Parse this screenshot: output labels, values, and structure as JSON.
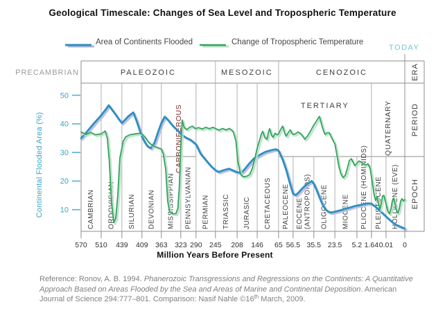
{
  "title": "Geological Timescale: Changes of Sea Level and Tropospheric Temperature",
  "legend": {
    "series1": "Area of Continents Flooded",
    "series2": "Change of Tropospheric Temperature"
  },
  "today_label": "TODAY",
  "colors": {
    "blue_line": "#2e8fbf",
    "blue_shadow": "#aeb6e2",
    "green_line": "#35a260",
    "green_shadow": "#b9e0c6",
    "axis_teal": "#3aa3c4",
    "tick_teal": "#4ab5d5",
    "today": "#6fc6e2",
    "frame": "#8c8c8c",
    "grid": "#b0b0b0",
    "text_dark": "#3d3d3d",
    "text_gray": "#9a9a9a",
    "carboniferous": "#7d2b28",
    "footer_gray": "#7f7f7f"
  },
  "footer": {
    "segments": [
      {
        "text": "Reference: Ronov, A. B. 1994. ",
        "style": "normal"
      },
      {
        "text": "Phanerozoic Transgressions and Regressions on the Continents: A Quantitative Approach Based on Areas Flooded by the Sea and Areas of Marine and Continental Deposition",
        "style": "italic"
      },
      {
        "text": ". American Journal of Science 294:777–801. Comparison: Nasif Nahle ©16",
        "style": "normal"
      },
      {
        "text": "th",
        "style": "sup"
      },
      {
        "text": " March, 2009.",
        "style": "normal"
      }
    ]
  },
  "chart_data": {
    "type": "line",
    "title": "Geological Timescale: Changes of Sea Level and Tropospheric Temperature",
    "xlabel": "Million Years Before Present",
    "ylabel": "Continental Flooded Area (%)",
    "ylim": [
      0,
      55
    ],
    "y_ticks": [
      10,
      20,
      30,
      40,
      50
    ],
    "x_ticks": [
      {
        "ma": 570,
        "label": "570",
        "pos": 0.0
      },
      {
        "ma": 510,
        "label": "510",
        "pos": 0.062
      },
      {
        "ma": 439,
        "label": "439",
        "pos": 0.126
      },
      {
        "ma": 409,
        "label": "409",
        "pos": 0.188
      },
      {
        "ma": 363,
        "label": "363",
        "pos": 0.248
      },
      {
        "ma": 323,
        "label": "323",
        "pos": 0.308
      },
      {
        "ma": 290,
        "label": "290",
        "pos": 0.355
      },
      {
        "ma": 245,
        "label": "245",
        "pos": 0.415
      },
      {
        "ma": 208,
        "label": "208",
        "pos": 0.482
      },
      {
        "ma": 146,
        "label": "146",
        "pos": 0.544
      },
      {
        "ma": 65,
        "label": "65",
        "pos": 0.61
      },
      {
        "ma": 56.5,
        "label": "56.5",
        "pos": 0.655
      },
      {
        "ma": 35.5,
        "label": "35.5",
        "pos": 0.719
      },
      {
        "ma": 23.5,
        "label": "23.5",
        "pos": 0.784
      },
      {
        "ma": 5.2,
        "label": "5.2",
        "pos": 0.852
      },
      {
        "ma": 1.64,
        "label": "1.64",
        "pos": 0.897
      },
      {
        "ma": 0.01,
        "label": "0.01",
        "pos": 0.942
      },
      {
        "ma": 0,
        "label": "0",
        "pos": 1.0
      }
    ],
    "precambrian_label": "PRECAMBRIAN",
    "eras": [
      {
        "label": "PALEOZOIC",
        "from": 570,
        "to": 245
      },
      {
        "label": "MESOZOIC",
        "from": 245,
        "to": 65
      },
      {
        "label": "CENOZOIC",
        "from": 65,
        "to": 0
      }
    ],
    "column_labels": {
      "era": "ERA",
      "period": "PERIOD",
      "epoch": "EPOCH"
    },
    "periods": [
      {
        "label": "CAMBRIAN",
        "from": 570,
        "to": 510
      },
      {
        "label": "ORDOVICIAN",
        "from": 510,
        "to": 439
      },
      {
        "label": "SILURIAN",
        "from": 439,
        "to": 409
      },
      {
        "label": "DEVONIAN",
        "from": 409,
        "to": 363
      },
      {
        "label": "MISSISSIPPIAN",
        "from": 363,
        "to": 323
      },
      {
        "label": "PENNSYLVANIAN",
        "from": 323,
        "to": 290
      },
      {
        "label": "PERMIAN",
        "from": 290,
        "to": 245
      },
      {
        "label": "TRIASSIC",
        "from": 245,
        "to": 208
      },
      {
        "label": "JURASIC",
        "from": 208,
        "to": 146
      },
      {
        "label": "CRETACEOUS",
        "from": 146,
        "to": 65
      },
      {
        "label": "PALEOCENE",
        "from": 65,
        "to": 56.5
      },
      {
        "label": "EOCENE",
        "label2": "(ANTROPOIDS)",
        "from": 56.5,
        "to": 35.5
      },
      {
        "label": "OLIGOCENE",
        "from": 35.5,
        "to": 23.5
      },
      {
        "label": "MIOCENE",
        "from": 23.5,
        "to": 5.2
      },
      {
        "label": "PLIOCENE (HOMINIDS)",
        "from": 5.2,
        "to": 1.64
      },
      {
        "label": "PLEISTOCENE",
        "from": 1.64,
        "to": 0.01
      },
      {
        "label": "HOLOCENE (EVE)",
        "from": 0.01,
        "to": 0
      }
    ],
    "sub_labels": {
      "carboniferous": {
        "label": "CARBONIFEROUS",
        "from": 363,
        "to": 290
      },
      "tertiary": {
        "label": "TERTIARY",
        "from": 65,
        "to": 1.64
      },
      "quaternary": {
        "label": "QUATERNARY",
        "from": 1.64,
        "to": 0
      }
    },
    "series": [
      {
        "name": "Area of Continents Flooded",
        "points": [
          [
            570,
            35.0
          ],
          [
            553,
            37.2
          ],
          [
            533,
            40.0
          ],
          [
            510,
            43.0
          ],
          [
            496,
            44.8
          ],
          [
            484,
            46.5
          ],
          [
            472,
            44.8
          ],
          [
            460,
            43.2
          ],
          [
            451,
            41.8
          ],
          [
            439,
            40.3
          ],
          [
            434,
            41.5
          ],
          [
            429,
            42.7
          ],
          [
            422,
            44.0
          ],
          [
            417,
            41.0
          ],
          [
            412,
            37.5
          ],
          [
            409,
            35.5
          ],
          [
            402,
            33.5
          ],
          [
            396,
            32.2
          ],
          [
            388,
            31.5
          ],
          [
            379,
            33.5
          ],
          [
            371,
            37.0
          ],
          [
            363,
            40.3
          ],
          [
            356,
            42.5
          ],
          [
            349,
            41.3
          ],
          [
            339,
            39.2
          ],
          [
            331,
            38.0
          ],
          [
            323,
            36.5
          ],
          [
            313,
            35.3
          ],
          [
            301,
            34.3
          ],
          [
            290,
            32.8
          ],
          [
            279,
            29.5
          ],
          [
            267,
            27.3
          ],
          [
            256,
            25.3
          ],
          [
            245,
            23.8
          ],
          [
            239,
            23.2
          ],
          [
            231,
            23.8
          ],
          [
            222,
            24.3
          ],
          [
            215,
            23.7
          ],
          [
            208,
            23.1
          ],
          [
            195,
            22.9
          ],
          [
            182,
            24.5
          ],
          [
            169,
            26.3
          ],
          [
            157,
            27.8
          ],
          [
            146,
            28.6
          ],
          [
            130,
            29.5
          ],
          [
            115,
            30.2
          ],
          [
            96,
            30.7
          ],
          [
            83,
            31.0
          ],
          [
            73,
            31.1
          ],
          [
            65,
            30.6
          ],
          [
            62.6,
            27.5
          ],
          [
            60.5,
            23.8
          ],
          [
            58.5,
            19.5
          ],
          [
            56.5,
            15.5
          ],
          [
            53.7,
            15.1
          ],
          [
            50.2,
            16.3
          ],
          [
            46.7,
            17.6
          ],
          [
            43.2,
            18.7
          ],
          [
            39.7,
            19.6
          ],
          [
            37.6,
            20.0
          ],
          [
            35.5,
            19.0
          ],
          [
            33.9,
            16.8
          ],
          [
            32.3,
            14.3
          ],
          [
            30.7,
            12.0
          ],
          [
            29.1,
            10.3
          ],
          [
            27.5,
            9.4
          ],
          [
            25.9,
            9.0
          ],
          [
            24.7,
            9.1
          ],
          [
            23.5,
            9.3
          ],
          [
            20.6,
            9.6
          ],
          [
            17.2,
            10.0
          ],
          [
            13.8,
            10.4
          ],
          [
            10.35,
            10.8
          ],
          [
            7.5,
            11.2
          ],
          [
            5.2,
            11.4
          ],
          [
            4.18,
            11.7
          ],
          [
            3.33,
            12.0
          ],
          [
            2.49,
            12.2
          ],
          [
            1.64,
            12.1
          ],
          [
            1.25,
            11.2
          ],
          [
            0.86,
            10.1
          ],
          [
            0.48,
            9.0
          ],
          [
            0.01,
            7.6
          ],
          [
            0.0078,
            6.3
          ],
          [
            0.0052,
            4.9
          ],
          [
            0.0026,
            4.1
          ],
          [
            0,
            3.4
          ]
        ]
      },
      {
        "name": "Change of Tropospheric Temperature",
        "points": [
          [
            570,
            37.2
          ],
          [
            556,
            36.3
          ],
          [
            541,
            37.0
          ],
          [
            527,
            36.2
          ],
          [
            510,
            36.5
          ],
          [
            496,
            37.5
          ],
          [
            489,
            35.0
          ],
          [
            482,
            27.0
          ],
          [
            475,
            13.0
          ],
          [
            467,
            5.5
          ],
          [
            460,
            7.0
          ],
          [
            453,
            15.0
          ],
          [
            446,
            28.0
          ],
          [
            437,
            34.0
          ],
          [
            433,
            35.5
          ],
          [
            427,
            36.2
          ],
          [
            419,
            36.5
          ],
          [
            412,
            36.7
          ],
          [
            409,
            36.5
          ],
          [
            401,
            35.2
          ],
          [
            393,
            33.5
          ],
          [
            383,
            32.3
          ],
          [
            373,
            31.8
          ],
          [
            363,
            31.2
          ],
          [
            359,
            29.5
          ],
          [
            354,
            24.0
          ],
          [
            350,
            13.0
          ],
          [
            346,
            9.2
          ],
          [
            340,
            8.6
          ],
          [
            333,
            8.6
          ],
          [
            329,
            10.5
          ],
          [
            326,
            18.0
          ],
          [
            323,
            32.0
          ],
          [
            320,
            41.3
          ],
          [
            316,
            38.8
          ],
          [
            310,
            38.0
          ],
          [
            304,
            38.8
          ],
          [
            298,
            39.2
          ],
          [
            291,
            38.3
          ],
          [
            284,
            38.7
          ],
          [
            276,
            38.2
          ],
          [
            267,
            38.8
          ],
          [
            259,
            38.3
          ],
          [
            251,
            38.8
          ],
          [
            245,
            38.4
          ],
          [
            239,
            37.8
          ],
          [
            233,
            38.4
          ],
          [
            227,
            37.9
          ],
          [
            221,
            38.4
          ],
          [
            215,
            37.4
          ],
          [
            210,
            34.0
          ],
          [
            206,
            27.0
          ],
          [
            197,
            22.3
          ],
          [
            189,
            21.5
          ],
          [
            178,
            21.7
          ],
          [
            169,
            22.3
          ],
          [
            161,
            24.5
          ],
          [
            152,
            28.5
          ],
          [
            146,
            31.5
          ],
          [
            138,
            34.0
          ],
          [
            130,
            36.5
          ],
          [
            125,
            37.4
          ],
          [
            117,
            35.2
          ],
          [
            109,
            34.6
          ],
          [
            104,
            36.8
          ],
          [
            99,
            38.3
          ],
          [
            91,
            35.9
          ],
          [
            86,
            35.3
          ],
          [
            78,
            36.7
          ],
          [
            70,
            36.2
          ],
          [
            65,
            36.5
          ],
          [
            63.8,
            38.0
          ],
          [
            62.6,
            39.2
          ],
          [
            61.4,
            36.7
          ],
          [
            60.5,
            35.7
          ],
          [
            59.3,
            37.0
          ],
          [
            58.1,
            37.9
          ],
          [
            57.3,
            36.7
          ],
          [
            56.2,
            36.3
          ],
          [
            53.7,
            36.6
          ],
          [
            51.6,
            37.2
          ],
          [
            49.5,
            36.8
          ],
          [
            46.7,
            35.7
          ],
          [
            44.6,
            34.6
          ],
          [
            41.8,
            35.8
          ],
          [
            39,
            37.4
          ],
          [
            36.2,
            39.2
          ],
          [
            34.3,
            40.7
          ],
          [
            33.1,
            41.9
          ],
          [
            32.3,
            42.6
          ],
          [
            31.1,
            39.8
          ],
          [
            29.9,
            37.4
          ],
          [
            29.1,
            36.3
          ],
          [
            27.9,
            36.9
          ],
          [
            26.7,
            36.9
          ],
          [
            25.5,
            35.3
          ],
          [
            24.3,
            33.9
          ],
          [
            23.5,
            33.0
          ],
          [
            21.8,
            29.0
          ],
          [
            20.1,
            25.0
          ],
          [
            18.4,
            22.4
          ],
          [
            16.6,
            21.2
          ],
          [
            14.9,
            22.0
          ],
          [
            13.2,
            24.4
          ],
          [
            11.5,
            27.2
          ],
          [
            9.8,
            27.8
          ],
          [
            8.1,
            26.3
          ],
          [
            6.9,
            25.4
          ],
          [
            5.2,
            26.2
          ],
          [
            4.69,
            27.0
          ],
          [
            4.18,
            26.7
          ],
          [
            3.67,
            26.0
          ],
          [
            2.99,
            25.6
          ],
          [
            2.49,
            26.0
          ],
          [
            1.98,
            24.5
          ],
          [
            1.64,
            21.5
          ],
          [
            1.48,
            18.0
          ],
          [
            1.33,
            15.0
          ],
          [
            1.17,
            13.2
          ],
          [
            1.02,
            14.6
          ],
          [
            0.86,
            12.0
          ],
          [
            0.71,
            10.0
          ],
          [
            0.55,
            12.2
          ],
          [
            0.4,
            14.8
          ],
          [
            0.24,
            15.0
          ],
          [
            0.09,
            13.0
          ],
          [
            0.0096,
            11.0
          ],
          [
            0.0089,
            9.2
          ],
          [
            0.0081,
            8.6
          ],
          [
            0.0074,
            10.2
          ],
          [
            0.0067,
            13.0
          ],
          [
            0.0059,
            14.0
          ],
          [
            0.0052,
            12.0
          ],
          [
            0.0044,
            9.6
          ],
          [
            0.0037,
            8.8
          ],
          [
            0.003,
            10.2
          ],
          [
            0.0022,
            13.0
          ],
          [
            0.0015,
            13.8
          ],
          [
            0.0007,
            13.0
          ],
          [
            0,
            13.6
          ]
        ]
      }
    ]
  }
}
